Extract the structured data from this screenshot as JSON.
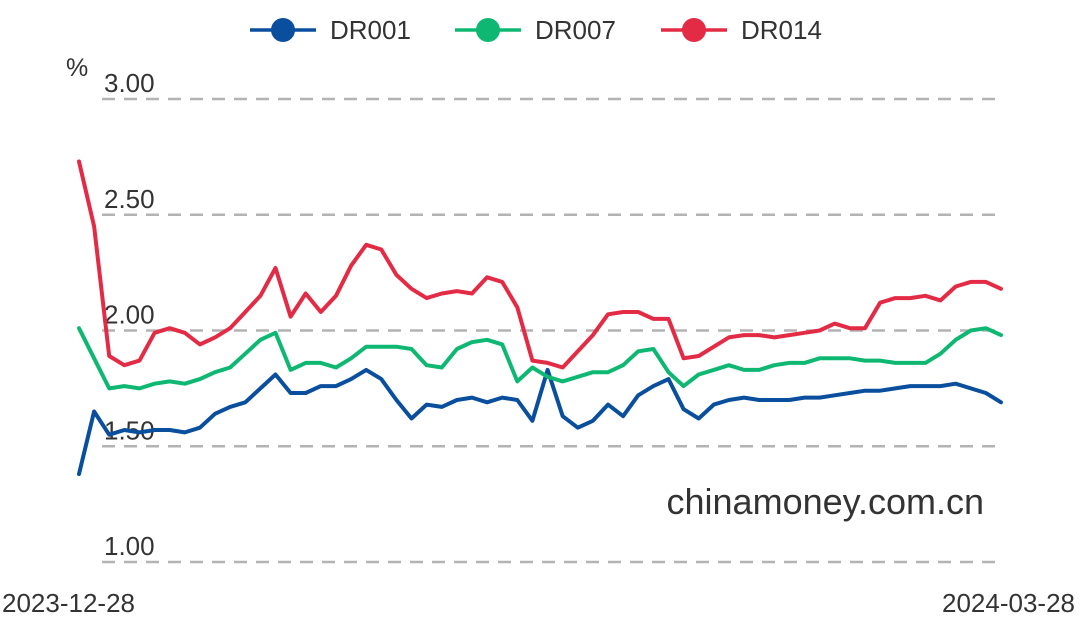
{
  "colors": {
    "DR001": "#0a4f9e",
    "DR007": "#0fb872",
    "DR014": "#e32b45",
    "grid": "#b3b3b3",
    "text": "#333333"
  },
  "watermark": "chinamoney.com.cn",
  "chart_data": {
    "type": "line",
    "title": "",
    "xlabel": "",
    "ylabel": "%",
    "ylim": [
      1.0,
      3.0
    ],
    "yticks": [
      "1.00",
      "1.50",
      "2.00",
      "2.50",
      "3.00"
    ],
    "grid": true,
    "legend_position": "top-center",
    "x_start_label": "2023-12-28",
    "x_end_label": "2024-03-28",
    "series": [
      {
        "name": "DR001",
        "values": [
          1.38,
          1.65,
          1.55,
          1.57,
          1.56,
          1.57,
          1.57,
          1.56,
          1.58,
          1.64,
          1.67,
          1.69,
          1.75,
          1.81,
          1.73,
          1.73,
          1.76,
          1.76,
          1.79,
          1.83,
          1.79,
          1.7,
          1.62,
          1.68,
          1.67,
          1.7,
          1.71,
          1.69,
          1.71,
          1.7,
          1.61,
          1.83,
          1.63,
          1.58,
          1.61,
          1.68,
          1.63,
          1.72,
          1.76,
          1.79,
          1.66,
          1.62,
          1.68,
          1.7,
          1.71,
          1.7,
          1.7,
          1.7,
          1.71,
          1.71,
          1.72,
          1.73,
          1.74,
          1.74,
          1.75,
          1.76,
          1.76,
          1.76,
          1.77,
          1.75,
          1.73,
          1.69
        ]
      },
      {
        "name": "DR007",
        "values": [
          2.01,
          1.88,
          1.75,
          1.76,
          1.75,
          1.77,
          1.78,
          1.77,
          1.79,
          1.82,
          1.84,
          1.9,
          1.96,
          1.99,
          1.83,
          1.86,
          1.86,
          1.84,
          1.88,
          1.93,
          1.93,
          1.93,
          1.92,
          1.85,
          1.84,
          1.92,
          1.95,
          1.96,
          1.94,
          1.78,
          1.84,
          1.8,
          1.78,
          1.8,
          1.82,
          1.82,
          1.85,
          1.91,
          1.92,
          1.82,
          1.76,
          1.81,
          1.83,
          1.85,
          1.83,
          1.83,
          1.85,
          1.86,
          1.86,
          1.88,
          1.88,
          1.88,
          1.87,
          1.87,
          1.86,
          1.86,
          1.86,
          1.9,
          1.96,
          2.0,
          2.01,
          1.98
        ]
      },
      {
        "name": "DR014",
        "values": [
          2.73,
          2.45,
          1.89,
          1.85,
          1.87,
          1.99,
          2.01,
          1.99,
          1.94,
          1.97,
          2.01,
          2.08,
          2.15,
          2.27,
          2.06,
          2.16,
          2.08,
          2.15,
          2.28,
          2.37,
          2.35,
          2.24,
          2.18,
          2.14,
          2.16,
          2.17,
          2.16,
          2.23,
          2.21,
          2.1,
          1.87,
          1.86,
          1.84,
          1.91,
          1.98,
          2.07,
          2.08,
          2.08,
          2.05,
          2.05,
          1.88,
          1.89,
          1.93,
          1.97,
          1.98,
          1.98,
          1.97,
          1.98,
          1.99,
          2.0,
          2.03,
          2.01,
          2.01,
          2.12,
          2.14,
          2.14,
          2.15,
          2.13,
          2.19,
          2.21,
          2.21,
          2.18
        ]
      }
    ]
  }
}
